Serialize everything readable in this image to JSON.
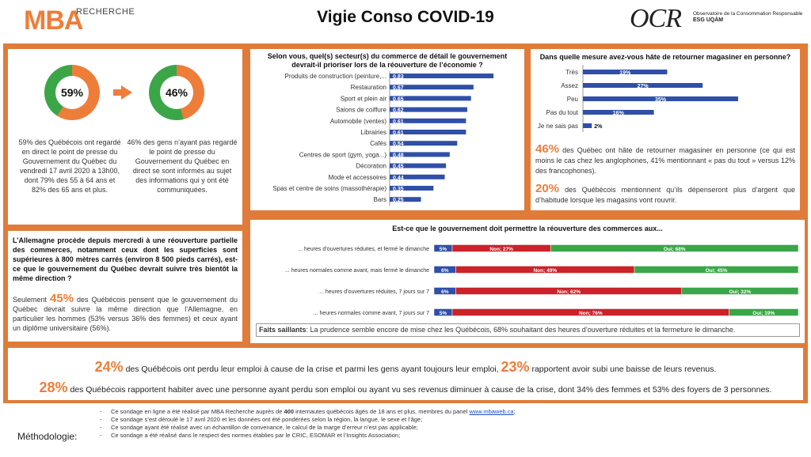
{
  "header": {
    "logo_mba": "MBA",
    "logo_recherche": "RECHERCHE",
    "title": "Vigie Conso COVID-19",
    "ocr_logo": "OCR",
    "ocr_line1": "Observatoire de la Consommation Responsable",
    "ocr_line2": "ESG UQÀM"
  },
  "donuts": {
    "left": {
      "pct_label": "59%",
      "value": 59,
      "text": "59% des Québécois ont regardé en direct le point de presse du Gouvernement du Québec du vendredi 17 avril 2020 à 13h00, dont 79% des 55 à 64 ans et 82% des 65 ans et plus."
    },
    "right": {
      "pct_label": "46%",
      "value": 46,
      "text": "46% des gens n’ayant pas regardé le point de presse du Gouvernement du Québec en direct se sont informés au sujet des informations qui y ont été communiquées."
    },
    "color_main": "#ee7d3a",
    "color_rest": "#3aa648"
  },
  "sectors": {
    "title": "Selon vous, quel(s) secteur(s) du commerce de détail le gouvernement devrait-il prioriser lors de la réouverture de l’économie ?",
    "bar_color": "#2f4fa8"
  },
  "eager": {
    "title": "Dans quelle mesure avez-vous hâte de retourner magasiner en personne?",
    "p1_pct": "46%",
    "p1_text": " des Québec ont hâte de retourner magasiner en personne (ce qui est moins le cas chez les anglophones, 41% mentionnant « pas du tout » versus 12% des francophones).",
    "p2_pct": "20%",
    "p2_text": " des Québécois mentionnent qu’ils dépenseront plus d’argent que d’habitude lorsque les magasins vont rouvrir."
  },
  "germany": {
    "question": "L’Allemagne procède depuis mercredi à une réouverture partielle des commerces, notamment ceux dont les superficies sont supérieures à 800 mètres carrés (environ 8 500 pieds carrés), est-ce que le gouvernement du Québec devrait suivre très bientôt la même direction ?",
    "lead": "Seulement ",
    "pct": "45%",
    "text": " des Québécois pensent que le gouvernement du Québec devrait suivre la même direction que l’Allemagne, en particulier les hommes (53% versus 36% des femmes) et ceux ayant un diplôme universitaire (56%)."
  },
  "reopen": {
    "title": "Est-ce que le gouvernement doit permettre la réouverture des commerces aux...",
    "colors": {
      "nsp": "#2f4fa8",
      "non": "#cc2229",
      "oui": "#3aa648"
    },
    "faits_label": "Faits saillants",
    "faits_text": ": La prudence semble encore de mise chez les Québécois, 68% souhaitant des heures d’ouverture réduites et la fermeture le dimanche."
  },
  "emploi": {
    "l1_pct1": "24%",
    "l1_t1": " des Québécois ont perdu leur emploi à cause de la crise et parmi les gens ayant toujours leur emploi, ",
    "l1_pct2": "23%",
    "l1_t2": " rapportent avoir subi une baisse de leurs revenus.",
    "l2_pct": "28%",
    "l2_t": " des Québécois rapportent habiter avec une personne ayant perdu son emploi ou ayant vu ses revenus diminuer à cause de la crise, dont 34% des femmes et 53% des foyers de 3 personnes."
  },
  "methodo": {
    "label": "Méthodologie:",
    "items": [
      {
        "pre": "Ce sondage en ligne a été réalisé par MBA Recherche auprès de ",
        "bold": "400",
        "post": " internautes québécois âgés de 18 ans et plus, membres du panel ",
        "link": "www.mbaweb.ca",
        "end": ";"
      },
      {
        "pre": "Ce sondage s’est déroulé le 17 avril 2020 et les données ont été pondérées selon la région, la langue, le sexe et l’âge;",
        "bold": "",
        "post": "",
        "link": "",
        "end": ""
      },
      {
        "pre": "Ce sondage ayant été réalisé avec un échantillon de convenance, le calcul de la marge d’erreur n’est pas applicable;",
        "bold": "",
        "post": "",
        "link": "",
        "end": ""
      },
      {
        "pre": "Ce sondage a été réalisé dans le respect des normes établies par le CRIC, ESOMAR et l’Insights Association;",
        "bold": "",
        "post": "",
        "link": "",
        "end": ""
      }
    ]
  },
  "chart_data": [
    {
      "type": "bar",
      "orientation": "horizontal",
      "title": "Selon vous, quel(s) secteur(s) du commerce de détail le gouvernement devrait-il prioriser lors de la réouverture de l’économie ?",
      "categories": [
        "Produits de construction (peinture,...",
        "Restauration",
        "Sport et plein air",
        "Salons de coiffure",
        "Automobile (ventes)",
        "Librairies",
        "Cafés",
        "Centres de sport (gym, yoga...)",
        "Décoration",
        "Mode et accessoires",
        "Spas et centre de soins (massothérapie)",
        "Bars"
      ],
      "values": [
        0.83,
        0.67,
        0.65,
        0.62,
        0.61,
        0.61,
        0.54,
        0.48,
        0.45,
        0.44,
        0.35,
        0.25
      ],
      "labels": [
        "0,83",
        "0,67",
        "0,65",
        "0,62",
        "0,61",
        "0,61",
        "0,54",
        "0,48",
        "0,45",
        "0,44",
        "0,35",
        "0,25"
      ],
      "xlim": [
        0,
        1
      ]
    },
    {
      "type": "bar",
      "orientation": "horizontal",
      "title": "Dans quelle mesure avez-vous hâte de retourner magasiner en personne?",
      "categories": [
        "Très",
        "Assez",
        "Peu",
        "Pas du tout",
        "Je ne sais pas"
      ],
      "values": [
        19,
        27,
        35,
        16,
        2
      ],
      "labels": [
        "19%",
        "27%",
        "35%",
        "16%",
        "2%"
      ],
      "xlim": [
        0,
        40
      ]
    },
    {
      "type": "bar",
      "orientation": "horizontal",
      "stacked": true,
      "title": "Est-ce que le gouvernement doit permettre la réouverture des commerces aux...",
      "categories": [
        "... heures d’ouvertures réduites, et fermé le dimanche",
        "... heures normales comme avant, mais fermé le dimanche",
        "... heures d’ouvertures réduites, 7 jours sur 7",
        "... heures normales comme avant, 7 jours sur 7"
      ],
      "series": [
        {
          "name": "NSP",
          "values": [
            5,
            6,
            6,
            5
          ],
          "labels": [
            "5%",
            "6%",
            "6%",
            "5%"
          ]
        },
        {
          "name": "Non",
          "values": [
            27,
            49,
            62,
            76
          ],
          "labels": [
            "Non; 27%",
            "Non; 49%",
            "Non; 62%",
            "Non; 76%"
          ]
        },
        {
          "name": "Oui",
          "values": [
            68,
            45,
            32,
            19
          ],
          "labels": [
            "Oui; 68%",
            "Oui; 45%",
            "Oui; 32%",
            "Oui; 19%"
          ]
        }
      ],
      "xlim": [
        0,
        100
      ]
    }
  ]
}
